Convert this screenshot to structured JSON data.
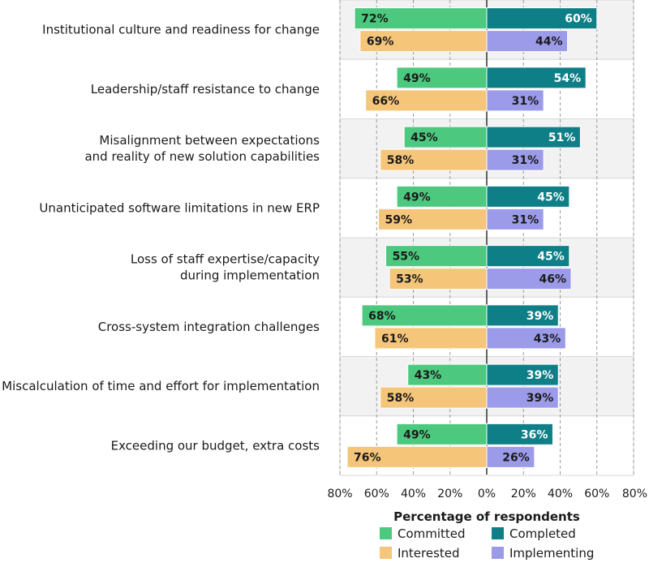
{
  "colors": {
    "committed": "#4cc97e",
    "interested": "#f5c57a",
    "completed": "#0f7f87",
    "implementing": "#9b9bea",
    "band": "#f2f2f2",
    "grid": "#9a9a9a",
    "axis": "#333333"
  },
  "chart_data": {
    "type": "bar",
    "orientation": "horizontal-diverging",
    "categories": [
      "Institutional culture and readiness for change",
      "Leadership/staff resistance to change",
      "Misalignment between expectations\nand reality of new solution capabilities",
      "Unanticipated software limitations in new ERP",
      "Loss of staff expertise/capacity\nduring implementation",
      "Cross-system integration challenges",
      "Miscalculation of time and effort for implementation",
      "Exceeding our budget, extra costs"
    ],
    "series": [
      {
        "name": "Committed",
        "side": "left",
        "row": 0,
        "color_key": "committed",
        "label_color": "#1a1a1a",
        "values": [
          72,
          49,
          45,
          49,
          55,
          68,
          43,
          49
        ]
      },
      {
        "name": "Interested",
        "side": "left",
        "row": 1,
        "color_key": "interested",
        "label_color": "#1a1a1a",
        "values": [
          69,
          66,
          58,
          59,
          53,
          61,
          58,
          76
        ]
      },
      {
        "name": "Completed",
        "side": "right",
        "row": 0,
        "color_key": "completed",
        "label_color": "#ffffff",
        "values": [
          60,
          54,
          51,
          45,
          45,
          39,
          39,
          36
        ]
      },
      {
        "name": "Implementing",
        "side": "right",
        "row": 1,
        "color_key": "implementing",
        "label_color": "#1a1a1a",
        "values": [
          44,
          31,
          31,
          31,
          46,
          43,
          39,
          26
        ]
      }
    ],
    "xlabel": "Percentage of respondents",
    "xlim": [
      -80,
      80
    ],
    "xticks": [
      "80%",
      "60%",
      "40%",
      "20%",
      "0%",
      "20%",
      "40%",
      "60%",
      "80%"
    ],
    "value_suffix": "%",
    "grid": true,
    "legend_position": "bottom",
    "legend": [
      {
        "name": "Committed",
        "color_key": "committed"
      },
      {
        "name": "Completed",
        "color_key": "completed"
      },
      {
        "name": "Interested",
        "color_key": "interested"
      },
      {
        "name": "Implementing",
        "color_key": "implementing"
      }
    ]
  }
}
